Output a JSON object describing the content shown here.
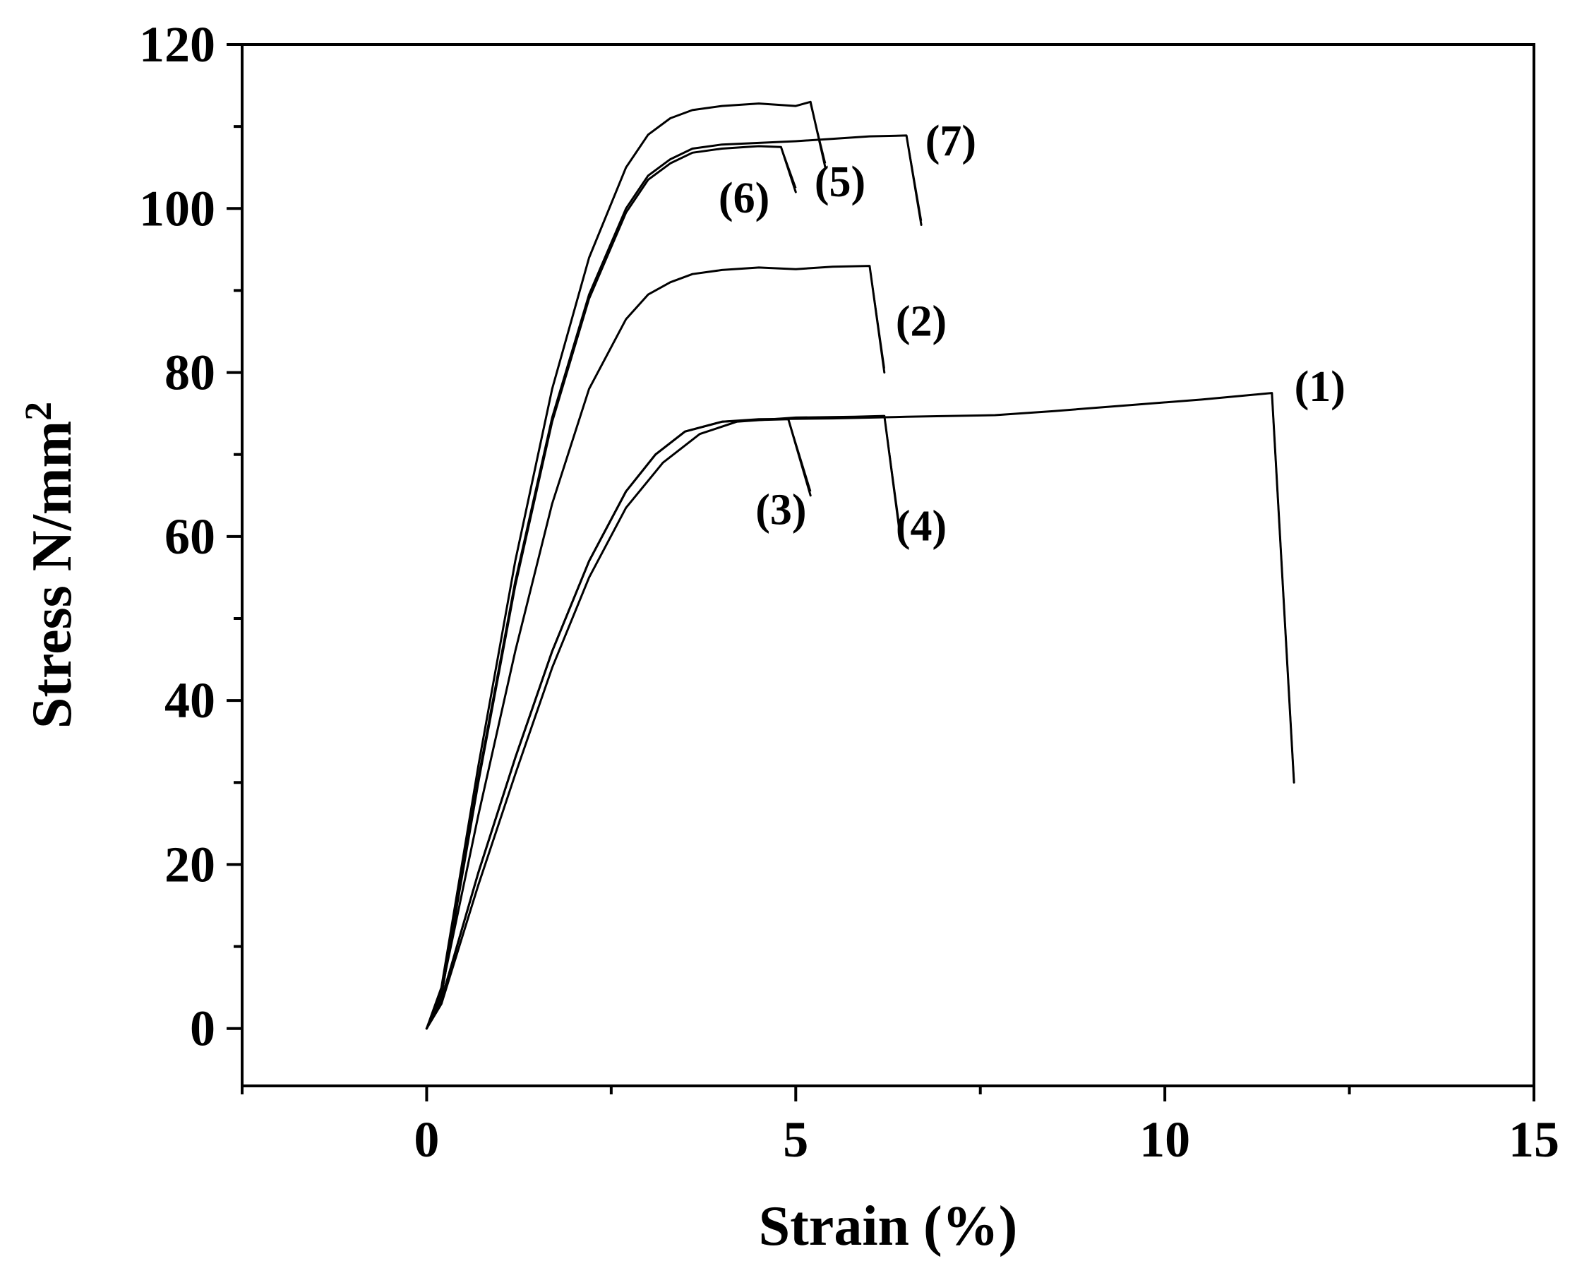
{
  "chart_data": {
    "type": "line",
    "xlabel": "Strain (%)",
    "ylabel": "Stress N/mm",
    "ylabel_sup": "2",
    "xlim": [
      -2.5,
      15
    ],
    "ylim": [
      -7,
      120
    ],
    "xticks": [
      0,
      5,
      10,
      15
    ],
    "yticks": [
      0,
      20,
      40,
      60,
      80,
      100,
      120
    ],
    "grid": false,
    "legend": "none",
    "series": [
      {
        "label": "(1)",
        "x": [
          0,
          0.2,
          0.7,
          1.2,
          1.7,
          2.2,
          2.7,
          3.1,
          3.5,
          4.0,
          4.5,
          5.5,
          6.5,
          7.7,
          8.5,
          9.5,
          10.5,
          11.45,
          11.75
        ],
        "y": [
          0,
          3.5,
          19,
          33,
          46,
          57,
          65.5,
          70,
          72.8,
          74,
          74.3,
          74.4,
          74.6,
          74.8,
          75.3,
          76,
          76.7,
          77.5,
          30
        ]
      },
      {
        "label": "(2)",
        "x": [
          0,
          0.2,
          0.7,
          1.2,
          1.7,
          2.2,
          2.7,
          3.0,
          3.3,
          3.6,
          4.0,
          4.5,
          5.0,
          5.5,
          6.0,
          6.2
        ],
        "y": [
          0,
          4.5,
          26,
          46,
          64,
          78,
          86.5,
          89.5,
          91,
          92,
          92.5,
          92.8,
          92.6,
          92.9,
          93,
          80
        ]
      },
      {
        "label": "(3)",
        "x": [
          0,
          0.2,
          0.7,
          1.2,
          1.7,
          2.2,
          2.7,
          3.1,
          3.5,
          4.0,
          4.5,
          4.9,
          5.2
        ],
        "y": [
          0,
          3.5,
          19,
          33,
          46,
          57,
          65.5,
          70,
          72.8,
          74,
          74.2,
          74.3,
          65
        ]
      },
      {
        "label": "(4)",
        "x": [
          0,
          0.2,
          0.7,
          1.2,
          1.7,
          2.2,
          2.7,
          3.2,
          3.7,
          4.2,
          5.0,
          5.8,
          6.2,
          6.4
        ],
        "y": [
          0,
          3,
          17.5,
          31,
          44,
          55,
          63.5,
          69,
          72.5,
          74,
          74.5,
          74.6,
          74.7,
          61
        ]
      },
      {
        "label": "(5)",
        "x": [
          0,
          0.2,
          0.7,
          1.2,
          1.7,
          2.2,
          2.7,
          3.0,
          3.3,
          3.6,
          4.0,
          4.5,
          5.0,
          5.2,
          5.4
        ],
        "y": [
          0,
          5,
          32,
          57,
          78,
          94,
          105,
          109,
          111,
          112,
          112.5,
          112.8,
          112.5,
          113,
          105
        ]
      },
      {
        "label": "(6)",
        "x": [
          0,
          0.2,
          0.7,
          1.2,
          1.7,
          2.2,
          2.7,
          3.0,
          3.3,
          3.6,
          4.0,
          4.5,
          4.8,
          5.0
        ],
        "y": [
          0,
          4,
          30,
          54,
          74,
          89,
          99.5,
          103.5,
          105.5,
          106.8,
          107.3,
          107.6,
          107.5,
          102
        ]
      },
      {
        "label": "(7)",
        "x": [
          0,
          0.2,
          0.7,
          1.2,
          1.7,
          2.2,
          2.7,
          3.0,
          3.3,
          3.6,
          4.0,
          4.5,
          5.0,
          5.5,
          6.0,
          6.5,
          6.7
        ],
        "y": [
          0,
          4,
          30.5,
          54.5,
          74.5,
          89.5,
          100,
          104,
          106,
          107.3,
          107.8,
          108,
          108.2,
          108.5,
          108.8,
          108.9,
          98
        ]
      }
    ],
    "curve_labels": [
      {
        "text": "(1)",
        "at": [
          12.1,
          76.5
        ]
      },
      {
        "text": "(2)",
        "at": [
          6.7,
          84.5
        ]
      },
      {
        "text": "(3)",
        "at": [
          4.8,
          61.5
        ]
      },
      {
        "text": "(4)",
        "at": [
          6.7,
          59.5
        ]
      },
      {
        "text": "(5)",
        "at": [
          5.6,
          101.5
        ]
      },
      {
        "text": "(6)",
        "at": [
          4.3,
          99.5
        ]
      },
      {
        "text": "(7)",
        "at": [
          7.1,
          106.5
        ]
      }
    ],
    "leader_lines": [
      {
        "from": [
          5.2,
          112.8
        ],
        "to": [
          5.4,
          105.5
        ]
      },
      {
        "from": [
          4.8,
          107.5
        ],
        "to": [
          5.0,
          102.5
        ]
      },
      {
        "from": [
          6.5,
          108.9
        ],
        "to": [
          6.7,
          98.5
        ]
      },
      {
        "from": [
          6.0,
          93
        ],
        "to": [
          6.2,
          80.5
        ]
      },
      {
        "from": [
          4.9,
          74.3
        ],
        "to": [
          5.2,
          65.5
        ]
      },
      {
        "from": [
          6.2,
          74.7
        ],
        "to": [
          6.4,
          61.5
        ]
      },
      {
        "from": [
          11.45,
          77.5
        ],
        "to": [
          11.75,
          30
        ]
      }
    ]
  }
}
